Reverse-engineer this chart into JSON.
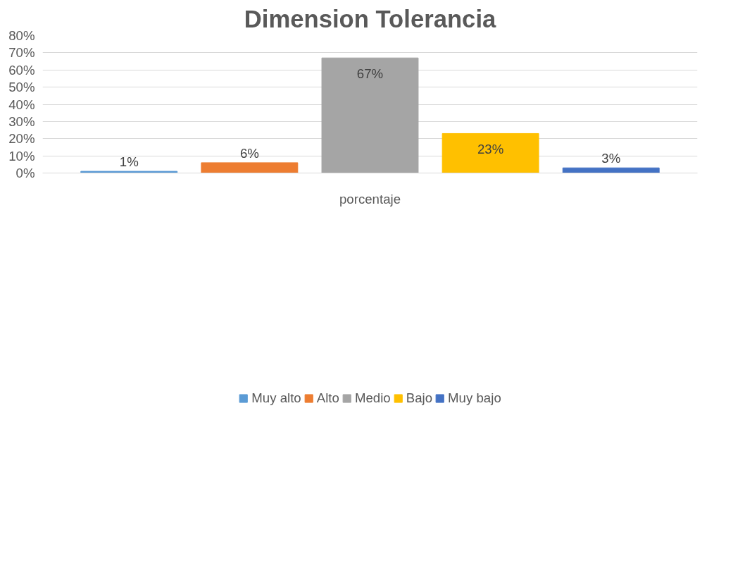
{
  "chart_data": {
    "type": "bar",
    "title": "Dimension Tolerancia",
    "categories": [
      "porcentaje"
    ],
    "series": [
      {
        "name": "Muy alto",
        "color": "#5b9bd5",
        "values": [
          1
        ],
        "value_labels": [
          "1%"
        ]
      },
      {
        "name": "Alto",
        "color": "#ed7d31",
        "values": [
          6
        ],
        "value_labels": [
          "6%"
        ]
      },
      {
        "name": "Medio",
        "color": "#a5a5a5",
        "values": [
          67
        ],
        "value_labels": [
          "67%"
        ]
      },
      {
        "name": "Bajo",
        "color": "#ffc000",
        "values": [
          23
        ],
        "value_labels": [
          "23%"
        ]
      },
      {
        "name": "Muy bajo",
        "color": "#4472c4",
        "values": [
          3
        ],
        "value_labels": [
          "3%"
        ]
      }
    ],
    "ylim": [
      0,
      80
    ],
    "yticks": [
      {
        "value": 0,
        "label": "0%"
      },
      {
        "value": 10,
        "label": "10%"
      },
      {
        "value": 20,
        "label": "20%"
      },
      {
        "value": 30,
        "label": "30%"
      },
      {
        "value": 40,
        "label": "40%"
      },
      {
        "value": 50,
        "label": "50%"
      },
      {
        "value": 60,
        "label": "60%"
      },
      {
        "value": 70,
        "label": "70%"
      },
      {
        "value": 80,
        "label": "80%"
      }
    ],
    "grid": "y",
    "legend": "bottom"
  }
}
